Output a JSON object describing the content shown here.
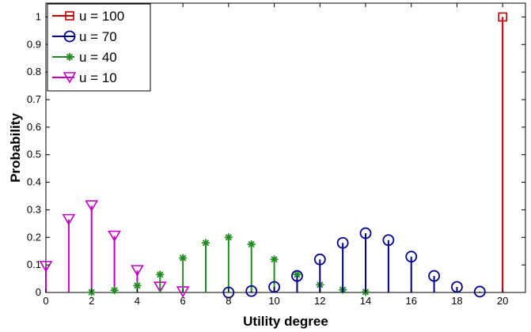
{
  "chart_data": {
    "type": "stem",
    "xlabel": "Utility degree",
    "ylabel": "Probability",
    "xlim": [
      0,
      21
    ],
    "ylim": [
      0,
      1.05
    ],
    "xticks": [
      0,
      2,
      4,
      6,
      8,
      10,
      12,
      14,
      16,
      18,
      20
    ],
    "yticks": [
      0,
      0.1,
      0.2,
      0.3,
      0.4,
      0.5,
      0.6,
      0.7,
      0.8,
      0.9,
      1
    ],
    "ytick_labels": [
      "0",
      "0.1",
      "0.2",
      "0.3",
      "0.4",
      "0.5",
      "0.6",
      "0.7",
      "0.8",
      "0.9",
      "1"
    ],
    "grid": false,
    "legend_position": "top-left",
    "series": [
      {
        "name": "u = 100",
        "color": "#c00000",
        "marker": "square",
        "points": [
          [
            20,
            1.0
          ]
        ]
      },
      {
        "name": "u = 70",
        "color": "#00008b",
        "marker": "circle",
        "points": [
          [
            8,
            0.0
          ],
          [
            9,
            0.005
          ],
          [
            10,
            0.02
          ],
          [
            11,
            0.06
          ],
          [
            12,
            0.12
          ],
          [
            13,
            0.18
          ],
          [
            14,
            0.215
          ],
          [
            15,
            0.19
          ],
          [
            16,
            0.13
          ],
          [
            17,
            0.06
          ],
          [
            18,
            0.02
          ],
          [
            19,
            0.003
          ]
        ]
      },
      {
        "name": "u = 40",
        "color": "#228b22",
        "marker": "asterisk",
        "points": [
          [
            2,
            0.001
          ],
          [
            3,
            0.008
          ],
          [
            4,
            0.025
          ],
          [
            5,
            0.065
          ],
          [
            6,
            0.125
          ],
          [
            7,
            0.18
          ],
          [
            8,
            0.2
          ],
          [
            9,
            0.175
          ],
          [
            10,
            0.12
          ],
          [
            11,
            0.065
          ],
          [
            12,
            0.028
          ],
          [
            13,
            0.01
          ],
          [
            14,
            0.002
          ]
        ]
      },
      {
        "name": "u = 10",
        "color": "#c000c0",
        "marker": "triangle-down",
        "points": [
          [
            0,
            0.095
          ],
          [
            1,
            0.265
          ],
          [
            2,
            0.315
          ],
          [
            3,
            0.205
          ],
          [
            4,
            0.08
          ],
          [
            5,
            0.02
          ],
          [
            6,
            0.003
          ]
        ]
      }
    ]
  }
}
